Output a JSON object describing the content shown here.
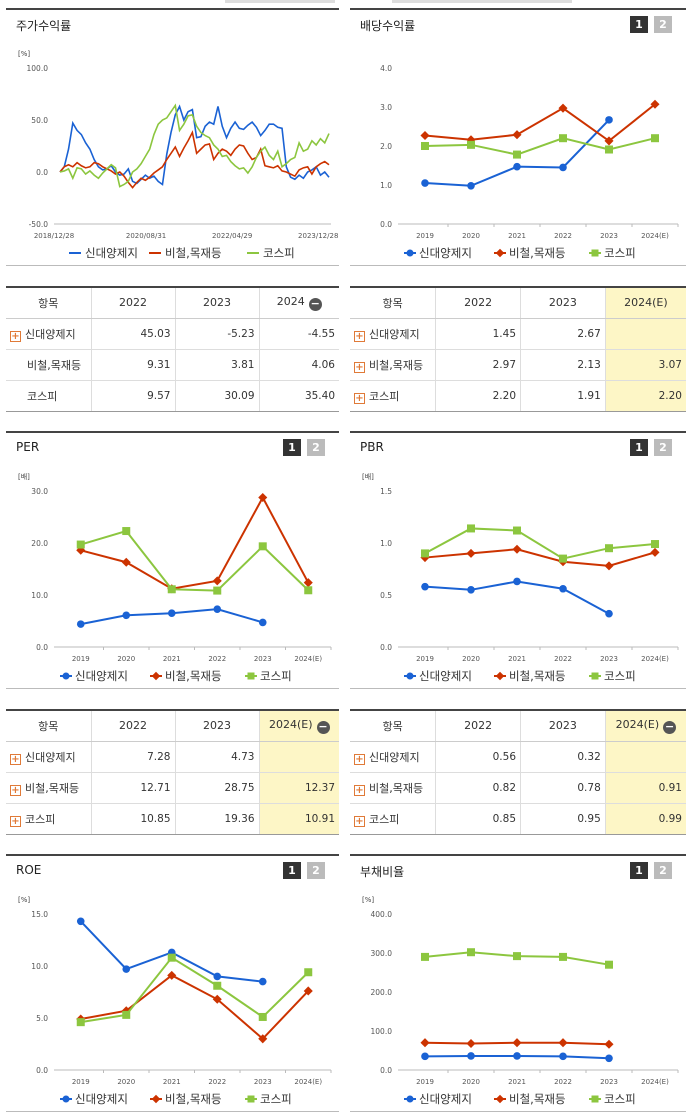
{
  "panels": [
    {
      "id": "return",
      "title": "주가수익률",
      "unit": "[%]",
      "buttons": false
    },
    {
      "id": "dividend",
      "title": "배당수익률",
      "unit": "",
      "buttons": true
    },
    {
      "id": "per",
      "title": "PER",
      "unit": "[배]",
      "buttons": true
    },
    {
      "id": "pbr",
      "title": "PBR",
      "unit": "[배]",
      "buttons": true
    },
    {
      "id": "roe",
      "title": "ROE",
      "unit": "[%]",
      "buttons": true
    },
    {
      "id": "debt",
      "title": "부채비율",
      "unit": "[%]",
      "buttons": true
    }
  ],
  "buttons": {
    "b1": "1",
    "b2": "2"
  },
  "legend": [
    "신대양제지",
    "비철,목재등",
    "코스피"
  ],
  "colors": {
    "s1": "#1a62d4",
    "s2": "#cc3300",
    "s3": "#8cc63f"
  },
  "tables": [
    {
      "id": "return",
      "header": [
        "항목",
        "2022",
        "2023",
        "2024"
      ],
      "minus": true,
      "hl_col": -1,
      "rows": [
        {
          "label": "신대양제지",
          "plus": true,
          "cells": [
            "45.03",
            "-5.23",
            "-4.55"
          ]
        },
        {
          "label": "비철,목재등",
          "plus": false,
          "cells": [
            "9.31",
            "3.81",
            "4.06"
          ]
        },
        {
          "label": "코스피",
          "plus": false,
          "cells": [
            "9.57",
            "30.09",
            "35.40"
          ]
        }
      ]
    },
    {
      "id": "dividend",
      "header": [
        "항목",
        "2022",
        "2023",
        "2024(E)"
      ],
      "minus": false,
      "hl_col": 3,
      "rows": [
        {
          "label": "신대양제지",
          "plus": true,
          "cells": [
            "1.45",
            "2.67",
            ""
          ]
        },
        {
          "label": "비철,목재등",
          "plus": true,
          "cells": [
            "2.97",
            "2.13",
            "3.07"
          ]
        },
        {
          "label": "코스피",
          "plus": true,
          "cells": [
            "2.20",
            "1.91",
            "2.20"
          ]
        }
      ]
    },
    {
      "id": "per",
      "header": [
        "항목",
        "2022",
        "2023",
        "2024(E)"
      ],
      "minus": true,
      "hl_col": 3,
      "rows": [
        {
          "label": "신대양제지",
          "plus": true,
          "cells": [
            "7.28",
            "4.73",
            ""
          ]
        },
        {
          "label": "비철,목재등",
          "plus": true,
          "cells": [
            "12.71",
            "28.75",
            "12.37"
          ]
        },
        {
          "label": "코스피",
          "plus": true,
          "cells": [
            "10.85",
            "19.36",
            "10.91"
          ]
        }
      ]
    },
    {
      "id": "pbr",
      "header": [
        "항목",
        "2022",
        "2023",
        "2024(E)"
      ],
      "minus": true,
      "hl_col": 3,
      "rows": [
        {
          "label": "신대양제지",
          "plus": true,
          "cells": [
            "0.56",
            "0.32",
            ""
          ]
        },
        {
          "label": "비철,목재등",
          "plus": true,
          "cells": [
            "0.82",
            "0.78",
            "0.91"
          ]
        },
        {
          "label": "코스피",
          "plus": true,
          "cells": [
            "0.85",
            "0.95",
            "0.99"
          ]
        }
      ]
    }
  ],
  "chart_data": [
    {
      "id": "return",
      "type": "line",
      "ylim": [
        -50,
        100
      ],
      "yticks": [
        "100.0",
        "50.0",
        "0.0",
        "-50.0"
      ],
      "xtick_labels": [
        "2018/12/28",
        "2020/08/31",
        "2022/04/29",
        "2023/12/28"
      ],
      "series": [
        {
          "name": "신대양제지",
          "values": [
            0,
            5,
            22,
            47,
            40,
            36,
            28,
            22,
            12,
            5,
            2,
            3,
            6,
            0,
            -3,
            -2,
            3,
            -9,
            -11,
            -7,
            -3,
            -6,
            -4,
            -9,
            -12,
            17,
            38,
            55,
            63,
            50,
            58,
            60,
            33,
            34,
            44,
            48,
            46,
            63,
            44,
            33,
            42,
            48,
            42,
            41,
            45,
            48,
            43,
            35,
            40,
            46,
            46,
            43,
            42,
            5,
            -5,
            -7,
            -3,
            -6,
            0,
            2,
            5,
            -3,
            0,
            -5
          ]
        },
        {
          "name": "비철,목재등",
          "values": [
            0,
            5,
            7,
            5,
            9,
            6,
            4,
            5,
            9,
            8,
            5,
            3,
            1,
            -2,
            0,
            -4,
            -10,
            -15,
            -10,
            -6,
            -8,
            -5,
            -1,
            2,
            5,
            12,
            18,
            24,
            15,
            23,
            30,
            38,
            18,
            22,
            26,
            27,
            12,
            18,
            22,
            20,
            16,
            22,
            26,
            25,
            18,
            12,
            14,
            22,
            6,
            5,
            4,
            6,
            1,
            0,
            -2,
            -4,
            2,
            4,
            5,
            -2,
            5,
            8,
            10,
            7
          ]
        },
        {
          "name": "코스피",
          "values": [
            0,
            1,
            3,
            -6,
            4,
            3,
            -2,
            1,
            -3,
            -6,
            -1,
            3,
            7,
            4,
            -14,
            -12,
            -9,
            0,
            3,
            8,
            15,
            22,
            36,
            46,
            50,
            52,
            58,
            64,
            40,
            46,
            54,
            55,
            44,
            38,
            35,
            33,
            26,
            22,
            15,
            16,
            10,
            6,
            3,
            4,
            -1,
            5,
            14,
            20,
            24,
            16,
            12,
            20,
            5,
            8,
            12,
            14,
            28,
            20,
            22,
            30,
            26,
            32,
            28,
            37
          ]
        }
      ]
    },
    {
      "id": "dividend",
      "type": "line",
      "ylim": [
        0,
        4
      ],
      "yticks": [
        "4.0",
        "3.0",
        "2.0",
        "1.0",
        "0.0"
      ],
      "categories": [
        "2019",
        "2020",
        "2021",
        "2022",
        "2023",
        "2024(E)"
      ],
      "series": [
        {
          "name": "신대양제지",
          "values": [
            1.05,
            0.98,
            1.47,
            1.45,
            2.67,
            null
          ]
        },
        {
          "name": "비철,목재등",
          "values": [
            2.27,
            2.16,
            2.29,
            2.97,
            2.13,
            3.07
          ]
        },
        {
          "name": "코스피",
          "values": [
            2.0,
            2.03,
            1.78,
            2.2,
            1.91,
            2.2
          ]
        }
      ]
    },
    {
      "id": "per",
      "type": "line",
      "ylim": [
        0,
        30
      ],
      "yticks": [
        "30.0",
        "20.0",
        "10.0",
        "0.0"
      ],
      "categories": [
        "2019",
        "2020",
        "2021",
        "2022",
        "2023",
        "2024(E)"
      ],
      "series": [
        {
          "name": "신대양제지",
          "values": [
            4.4,
            6.1,
            6.5,
            7.28,
            4.73,
            null
          ]
        },
        {
          "name": "비철,목재등",
          "values": [
            18.6,
            16.3,
            11.2,
            12.71,
            28.75,
            12.37
          ]
        },
        {
          "name": "코스피",
          "values": [
            19.7,
            22.3,
            11.1,
            10.85,
            19.36,
            10.91
          ]
        }
      ]
    },
    {
      "id": "pbr",
      "type": "line",
      "ylim": [
        0,
        1.5
      ],
      "yticks": [
        "1.5",
        "1.0",
        "0.5",
        "0.0"
      ],
      "categories": [
        "2019",
        "2020",
        "2021",
        "2022",
        "2023",
        "2024(E)"
      ],
      "series": [
        {
          "name": "신대양제지",
          "values": [
            0.58,
            0.55,
            0.63,
            0.56,
            0.32,
            null
          ]
        },
        {
          "name": "비철,목재등",
          "values": [
            0.86,
            0.9,
            0.94,
            0.82,
            0.78,
            0.91
          ]
        },
        {
          "name": "코스피",
          "values": [
            0.9,
            1.14,
            1.12,
            0.85,
            0.95,
            0.99
          ]
        }
      ]
    },
    {
      "id": "roe",
      "type": "line",
      "ylim": [
        0,
        15
      ],
      "yticks": [
        "15.0",
        "10.0",
        "5.0",
        "0.0"
      ],
      "categories": [
        "2019",
        "2020",
        "2021",
        "2022",
        "2023",
        "2024(E)"
      ],
      "series": [
        {
          "name": "신대양제지",
          "values": [
            14.3,
            9.7,
            11.3,
            9.0,
            8.5,
            null
          ]
        },
        {
          "name": "비철,목재등",
          "values": [
            4.9,
            5.7,
            9.1,
            6.8,
            3.0,
            7.6
          ]
        },
        {
          "name": "코스피",
          "values": [
            4.6,
            5.3,
            10.8,
            8.1,
            5.1,
            9.4
          ]
        }
      ]
    },
    {
      "id": "debt",
      "type": "line",
      "ylim": [
        0,
        400
      ],
      "yticks": [
        "400.0",
        "300.0",
        "200.0",
        "100.0",
        "0.0"
      ],
      "categories": [
        "2019",
        "2020",
        "2021",
        "2022",
        "2023",
        "2024(E)"
      ],
      "series": [
        {
          "name": "신대양제지",
          "values": [
            35,
            36,
            36,
            35,
            30,
            null
          ]
        },
        {
          "name": "비철,목재등",
          "values": [
            70,
            68,
            70,
            70,
            66,
            null
          ]
        },
        {
          "name": "코스피",
          "values": [
            290,
            302,
            292,
            290,
            270,
            null
          ]
        }
      ]
    }
  ]
}
